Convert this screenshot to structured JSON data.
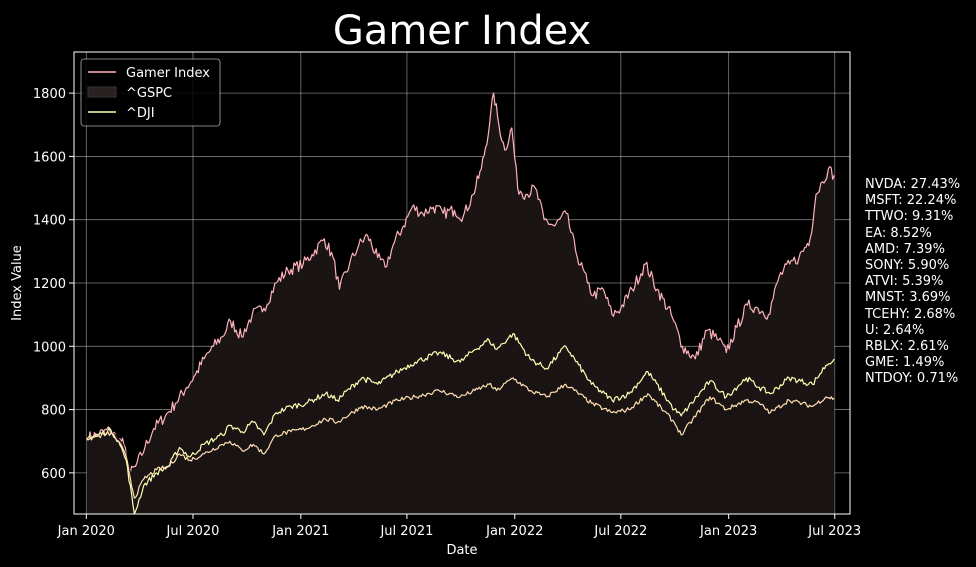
{
  "chart_data": {
    "type": "line",
    "title": "Gamer Index",
    "xlabel": "Date",
    "ylabel": "Index Value",
    "x_ticks": [
      "Jan 2020",
      "Jul 2020",
      "Jan 2021",
      "Jul 2021",
      "Jan 2022",
      "Jul 2022",
      "Jan 2023",
      "Jul 2023"
    ],
    "y_ticks": [
      600,
      800,
      1000,
      1200,
      1400,
      1600,
      1800
    ],
    "xlim": [
      "2019-12-11",
      "2023-07-27"
    ],
    "ylim": [
      470,
      1930
    ],
    "grid": true,
    "legend_position": "top-left",
    "series": [
      {
        "name": "Gamer Index",
        "style": "line",
        "color": "#ffb3ba",
        "points": [
          [
            "2020-01-02",
            710
          ],
          [
            "2020-01-20",
            722
          ],
          [
            "2020-02-10",
            735
          ],
          [
            "2020-02-25",
            705
          ],
          [
            "2020-03-05",
            690
          ],
          [
            "2020-03-16",
            600
          ],
          [
            "2020-03-25",
            620
          ],
          [
            "2020-04-10",
            680
          ],
          [
            "2020-04-25",
            740
          ],
          [
            "2020-05-15",
            780
          ],
          [
            "2020-06-01",
            820
          ],
          [
            "2020-06-20",
            870
          ],
          [
            "2020-07-05",
            910
          ],
          [
            "2020-07-20",
            960
          ],
          [
            "2020-08-05",
            1000
          ],
          [
            "2020-08-20",
            1030
          ],
          [
            "2020-09-03",
            1080
          ],
          [
            "2020-09-22",
            1030
          ],
          [
            "2020-10-10",
            1100
          ],
          [
            "2020-10-30",
            1120
          ],
          [
            "2020-11-20",
            1200
          ],
          [
            "2020-12-10",
            1240
          ],
          [
            "2021-01-05",
            1260
          ],
          [
            "2021-01-20",
            1290
          ],
          [
            "2021-02-10",
            1340
          ],
          [
            "2021-02-25",
            1280
          ],
          [
            "2021-03-08",
            1180
          ],
          [
            "2021-03-25",
            1260
          ],
          [
            "2021-04-10",
            1320
          ],
          [
            "2021-04-25",
            1350
          ],
          [
            "2021-05-12",
            1280
          ],
          [
            "2021-05-25",
            1250
          ],
          [
            "2021-06-10",
            1330
          ],
          [
            "2021-06-25",
            1380
          ],
          [
            "2021-07-10",
            1440
          ],
          [
            "2021-07-28",
            1420
          ],
          [
            "2021-08-15",
            1440
          ],
          [
            "2021-09-01",
            1420
          ],
          [
            "2021-09-20",
            1430
          ],
          [
            "2021-10-05",
            1410
          ],
          [
            "2021-10-22",
            1480
          ],
          [
            "2021-11-05",
            1560
          ],
          [
            "2021-11-19",
            1700
          ],
          [
            "2021-11-26",
            1800
          ],
          [
            "2021-12-05",
            1700
          ],
          [
            "2021-12-15",
            1620
          ],
          [
            "2021-12-27",
            1690
          ],
          [
            "2022-01-06",
            1500
          ],
          [
            "2022-01-20",
            1480
          ],
          [
            "2022-02-05",
            1500
          ],
          [
            "2022-02-20",
            1400
          ],
          [
            "2022-03-10",
            1380
          ],
          [
            "2022-03-30",
            1420
          ],
          [
            "2022-04-15",
            1300
          ],
          [
            "2022-05-05",
            1200
          ],
          [
            "2022-05-15",
            1160
          ],
          [
            "2022-06-01",
            1180
          ],
          [
            "2022-06-16",
            1100
          ],
          [
            "2022-07-01",
            1120
          ],
          [
            "2022-07-20",
            1180
          ],
          [
            "2022-08-12",
            1260
          ],
          [
            "2022-09-01",
            1180
          ],
          [
            "2022-09-25",
            1100
          ],
          [
            "2022-10-14",
            1000
          ],
          [
            "2022-11-05",
            960
          ],
          [
            "2022-11-25",
            1050
          ],
          [
            "2022-12-15",
            1020
          ],
          [
            "2022-12-28",
            980
          ],
          [
            "2023-01-15",
            1060
          ],
          [
            "2023-02-02",
            1130
          ],
          [
            "2023-02-20",
            1120
          ],
          [
            "2023-03-10",
            1100
          ],
          [
            "2023-03-28",
            1220
          ],
          [
            "2023-04-15",
            1260
          ],
          [
            "2023-05-01",
            1280
          ],
          [
            "2023-05-20",
            1340
          ],
          [
            "2023-05-30",
            1480
          ],
          [
            "2023-06-10",
            1520
          ],
          [
            "2023-06-20",
            1560
          ],
          [
            "2023-06-30",
            1540
          ]
        ]
      },
      {
        "name": "^GSPC",
        "style": "area",
        "color": "#191313",
        "points": [
          [
            "2020-01-02",
            710
          ],
          [
            "2020-01-25",
            720
          ],
          [
            "2020-02-19",
            725
          ],
          [
            "2020-03-05",
            690
          ],
          [
            "2020-03-23",
            560
          ],
          [
            "2020-04-08",
            630
          ],
          [
            "2020-04-30",
            660
          ],
          [
            "2020-05-20",
            680
          ],
          [
            "2020-06-08",
            700
          ],
          [
            "2020-06-26",
            680
          ],
          [
            "2020-07-20",
            720
          ],
          [
            "2020-08-20",
            760
          ],
          [
            "2020-09-02",
            770
          ],
          [
            "2020-09-23",
            720
          ],
          [
            "2020-10-12",
            760
          ],
          [
            "2020-10-30",
            730
          ],
          [
            "2020-11-20",
            780
          ],
          [
            "2020-12-15",
            790
          ],
          [
            "2021-01-10",
            810
          ],
          [
            "2021-02-12",
            830
          ],
          [
            "2021-03-04",
            810
          ],
          [
            "2021-04-15",
            860
          ],
          [
            "2021-05-12",
            840
          ],
          [
            "2021-06-15",
            870
          ],
          [
            "2021-07-15",
            880
          ],
          [
            "2021-08-25",
            900
          ],
          [
            "2021-09-30",
            860
          ],
          [
            "2021-10-25",
            910
          ],
          [
            "2021-11-18",
            930
          ],
          [
            "2021-12-01",
            910
          ],
          [
            "2021-12-29",
            950
          ],
          [
            "2022-01-27",
            880
          ],
          [
            "2022-02-24",
            860
          ],
          [
            "2022-03-29",
            920
          ],
          [
            "2022-05-12",
            820
          ],
          [
            "2022-06-16",
            780
          ],
          [
            "2022-07-15",
            800
          ],
          [
            "2022-08-16",
            860
          ],
          [
            "2022-09-30",
            760
          ],
          [
            "2022-10-12",
            740
          ],
          [
            "2022-11-30",
            830
          ],
          [
            "2022-12-28",
            790
          ],
          [
            "2023-01-31",
            840
          ],
          [
            "2023-02-22",
            810
          ],
          [
            "2023-03-13",
            800
          ],
          [
            "2023-04-14",
            840
          ],
          [
            "2023-05-24",
            850
          ],
          [
            "2023-06-16",
            900
          ],
          [
            "2023-06-30",
            910
          ]
        ]
      },
      {
        "name": "^DJI",
        "style": "line",
        "color": "#ffffb3",
        "points": [
          [
            "2020-01-02",
            705
          ],
          [
            "2020-01-20",
            720
          ],
          [
            "2020-02-12",
            735
          ],
          [
            "2020-02-25",
            700
          ],
          [
            "2020-03-09",
            640
          ],
          [
            "2020-03-23",
            470
          ],
          [
            "2020-04-08",
            560
          ],
          [
            "2020-04-30",
            600
          ],
          [
            "2020-05-20",
            620
          ],
          [
            "2020-06-08",
            680
          ],
          [
            "2020-06-26",
            650
          ],
          [
            "2020-07-20",
            690
          ],
          [
            "2020-08-20",
            720
          ],
          [
            "2020-09-02",
            750
          ],
          [
            "2020-09-23",
            730
          ],
          [
            "2020-10-12",
            760
          ],
          [
            "2020-10-30",
            720
          ],
          [
            "2020-11-20",
            790
          ],
          [
            "2020-12-15",
            810
          ],
          [
            "2021-01-10",
            820
          ],
          [
            "2021-02-12",
            850
          ],
          [
            "2021-03-04",
            830
          ],
          [
            "2021-04-15",
            900
          ],
          [
            "2021-05-12",
            880
          ],
          [
            "2021-06-15",
            920
          ],
          [
            "2021-07-15",
            950
          ],
          [
            "2021-08-25",
            980
          ],
          [
            "2021-09-30",
            950
          ],
          [
            "2021-10-25",
            990
          ],
          [
            "2021-11-18",
            1020
          ],
          [
            "2021-12-01",
            990
          ],
          [
            "2021-12-29",
            1040
          ],
          [
            "2022-01-27",
            960
          ],
          [
            "2022-02-24",
            930
          ],
          [
            "2022-03-29",
            1000
          ],
          [
            "2022-05-12",
            880
          ],
          [
            "2022-06-16",
            830
          ],
          [
            "2022-07-15",
            850
          ],
          [
            "2022-08-16",
            920
          ],
          [
            "2022-09-30",
            800
          ],
          [
            "2022-10-12",
            780
          ],
          [
            "2022-11-30",
            890
          ],
          [
            "2022-12-28",
            840
          ],
          [
            "2023-01-31",
            900
          ],
          [
            "2023-02-22",
            870
          ],
          [
            "2023-03-13",
            850
          ],
          [
            "2023-04-14",
            900
          ],
          [
            "2023-05-24",
            880
          ],
          [
            "2023-06-16",
            940
          ],
          [
            "2023-06-30",
            960
          ]
        ]
      },
      {
        "name": "",
        "style": "line",
        "color": "#ffe0b0",
        "points": [
          [
            "2020-01-02",
            705
          ],
          [
            "2020-01-20",
            715
          ],
          [
            "2020-02-12",
            725
          ],
          [
            "2020-02-25",
            700
          ],
          [
            "2020-03-09",
            650
          ],
          [
            "2020-03-23",
            520
          ],
          [
            "2020-04-08",
            580
          ],
          [
            "2020-04-30",
            610
          ],
          [
            "2020-05-20",
            620
          ],
          [
            "2020-06-08",
            660
          ],
          [
            "2020-06-26",
            640
          ],
          [
            "2020-07-20",
            660
          ],
          [
            "2020-08-20",
            690
          ],
          [
            "2020-09-02",
            700
          ],
          [
            "2020-09-23",
            670
          ],
          [
            "2020-10-12",
            690
          ],
          [
            "2020-10-30",
            660
          ],
          [
            "2020-11-20",
            720
          ],
          [
            "2020-12-15",
            730
          ],
          [
            "2021-01-10",
            740
          ],
          [
            "2021-02-12",
            770
          ],
          [
            "2021-03-04",
            760
          ],
          [
            "2021-04-15",
            810
          ],
          [
            "2021-05-12",
            800
          ],
          [
            "2021-06-15",
            830
          ],
          [
            "2021-07-15",
            840
          ],
          [
            "2021-08-25",
            860
          ],
          [
            "2021-09-30",
            840
          ],
          [
            "2021-10-25",
            860
          ],
          [
            "2021-11-18",
            880
          ],
          [
            "2021-12-01",
            860
          ],
          [
            "2021-12-29",
            900
          ],
          [
            "2022-01-27",
            860
          ],
          [
            "2022-02-24",
            840
          ],
          [
            "2022-03-29",
            880
          ],
          [
            "2022-05-12",
            820
          ],
          [
            "2022-06-16",
            790
          ],
          [
            "2022-07-15",
            800
          ],
          [
            "2022-08-16",
            850
          ],
          [
            "2022-09-30",
            760
          ],
          [
            "2022-10-12",
            720
          ],
          [
            "2022-11-30",
            840
          ],
          [
            "2022-12-28",
            800
          ],
          [
            "2023-01-31",
            830
          ],
          [
            "2023-02-22",
            820
          ],
          [
            "2023-03-13",
            790
          ],
          [
            "2023-04-14",
            830
          ],
          [
            "2023-05-24",
            810
          ],
          [
            "2023-06-16",
            840
          ],
          [
            "2023-06-30",
            835
          ]
        ]
      }
    ],
    "annotations": [
      "NVDA: 27.43%",
      "MSFT: 22.24%",
      "TTWO: 9.31%",
      "EA: 8.52%",
      "AMD: 7.39%",
      "SONY: 5.90%",
      "ATVI: 5.39%",
      "MNST: 3.69%",
      "TCEHY: 2.68%",
      "U: 2.64%",
      "RBLX: 2.61%",
      "GME: 1.49%",
      "NTDOY: 0.71%"
    ]
  },
  "colors": {
    "background": "#000000",
    "grid": "#b0b0b0",
    "axes": "#ffffff"
  }
}
